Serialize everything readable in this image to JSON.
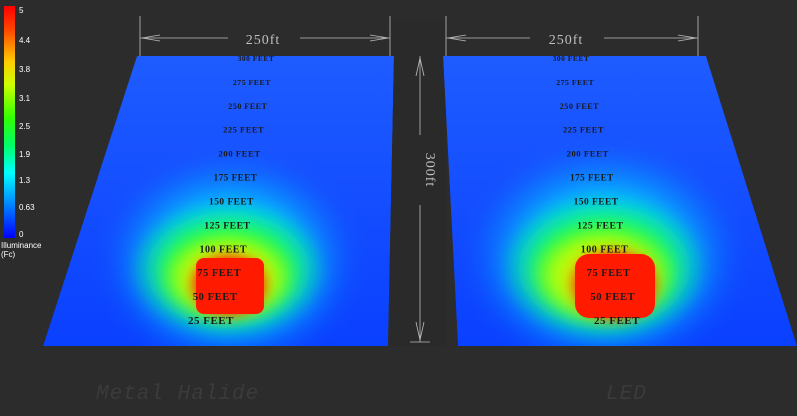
{
  "legend": {
    "ticks": [
      "5",
      "4.4",
      "3.8",
      "3.1",
      "2.5",
      "1.9",
      "1.3",
      "0.63",
      "0"
    ],
    "caption_line1": "Illuminance",
    "caption_line2": "(Fc)",
    "colors": [
      "#ff0000",
      "#ffcc00",
      "#33ff00",
      "#00ffff",
      "#0080ff",
      "#0000ff"
    ]
  },
  "dimensions": {
    "width_left": "250ft",
    "width_right": "250ft",
    "length": "300ft"
  },
  "distance_markers": [
    "300 FEET",
    "275 FEET",
    "250 FEET",
    "225 FEET",
    "200 FEET",
    "175 FEET",
    "150 FEET",
    "125 FEET",
    "100 FEET",
    "75 FEET",
    "50 FEET",
    "25 FEET"
  ],
  "panels": {
    "left_label": "Metal Halide",
    "right_label": "LED"
  },
  "colors": {
    "background": "#2c2c2c",
    "field_base": "#0a3cff",
    "hot": "#ff1a00"
  }
}
